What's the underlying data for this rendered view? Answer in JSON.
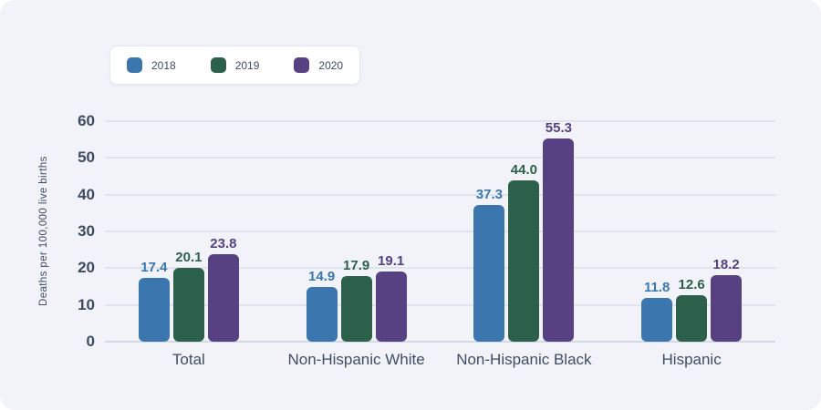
{
  "chart_data": {
    "type": "bar",
    "title": "",
    "xlabel": "",
    "ylabel": "Deaths per 100,000 live births",
    "categories": [
      "Total",
      "Non-Hispanic White",
      "Non-Hispanic Black",
      "Hispanic"
    ],
    "series": [
      {
        "name": "2018",
        "color": "#3b76ae",
        "values": [
          17.4,
          14.9,
          37.3,
          11.8
        ]
      },
      {
        "name": "2019",
        "color": "#2d604a",
        "values": [
          20.1,
          17.9,
          44.0,
          12.6
        ]
      },
      {
        "name": "2020",
        "color": "#574182",
        "values": [
          23.8,
          19.1,
          55.3,
          18.2
        ]
      }
    ],
    "ylim": [
      0,
      60
    ],
    "yticks": [
      0,
      10,
      20,
      30,
      40,
      50,
      60
    ],
    "grid": true,
    "legend_position": "top-left",
    "value_labels": true,
    "value_label_decimals": 1
  },
  "colors": {
    "background": "#f1f3f9",
    "gridline": "#dfe3ee",
    "baseline": "#d3d8e4",
    "axis_text": "#3d4b61",
    "category_text": "#3f4e64",
    "legend_background": "#ffffff",
    "legend_border": "#e6e9f2"
  }
}
